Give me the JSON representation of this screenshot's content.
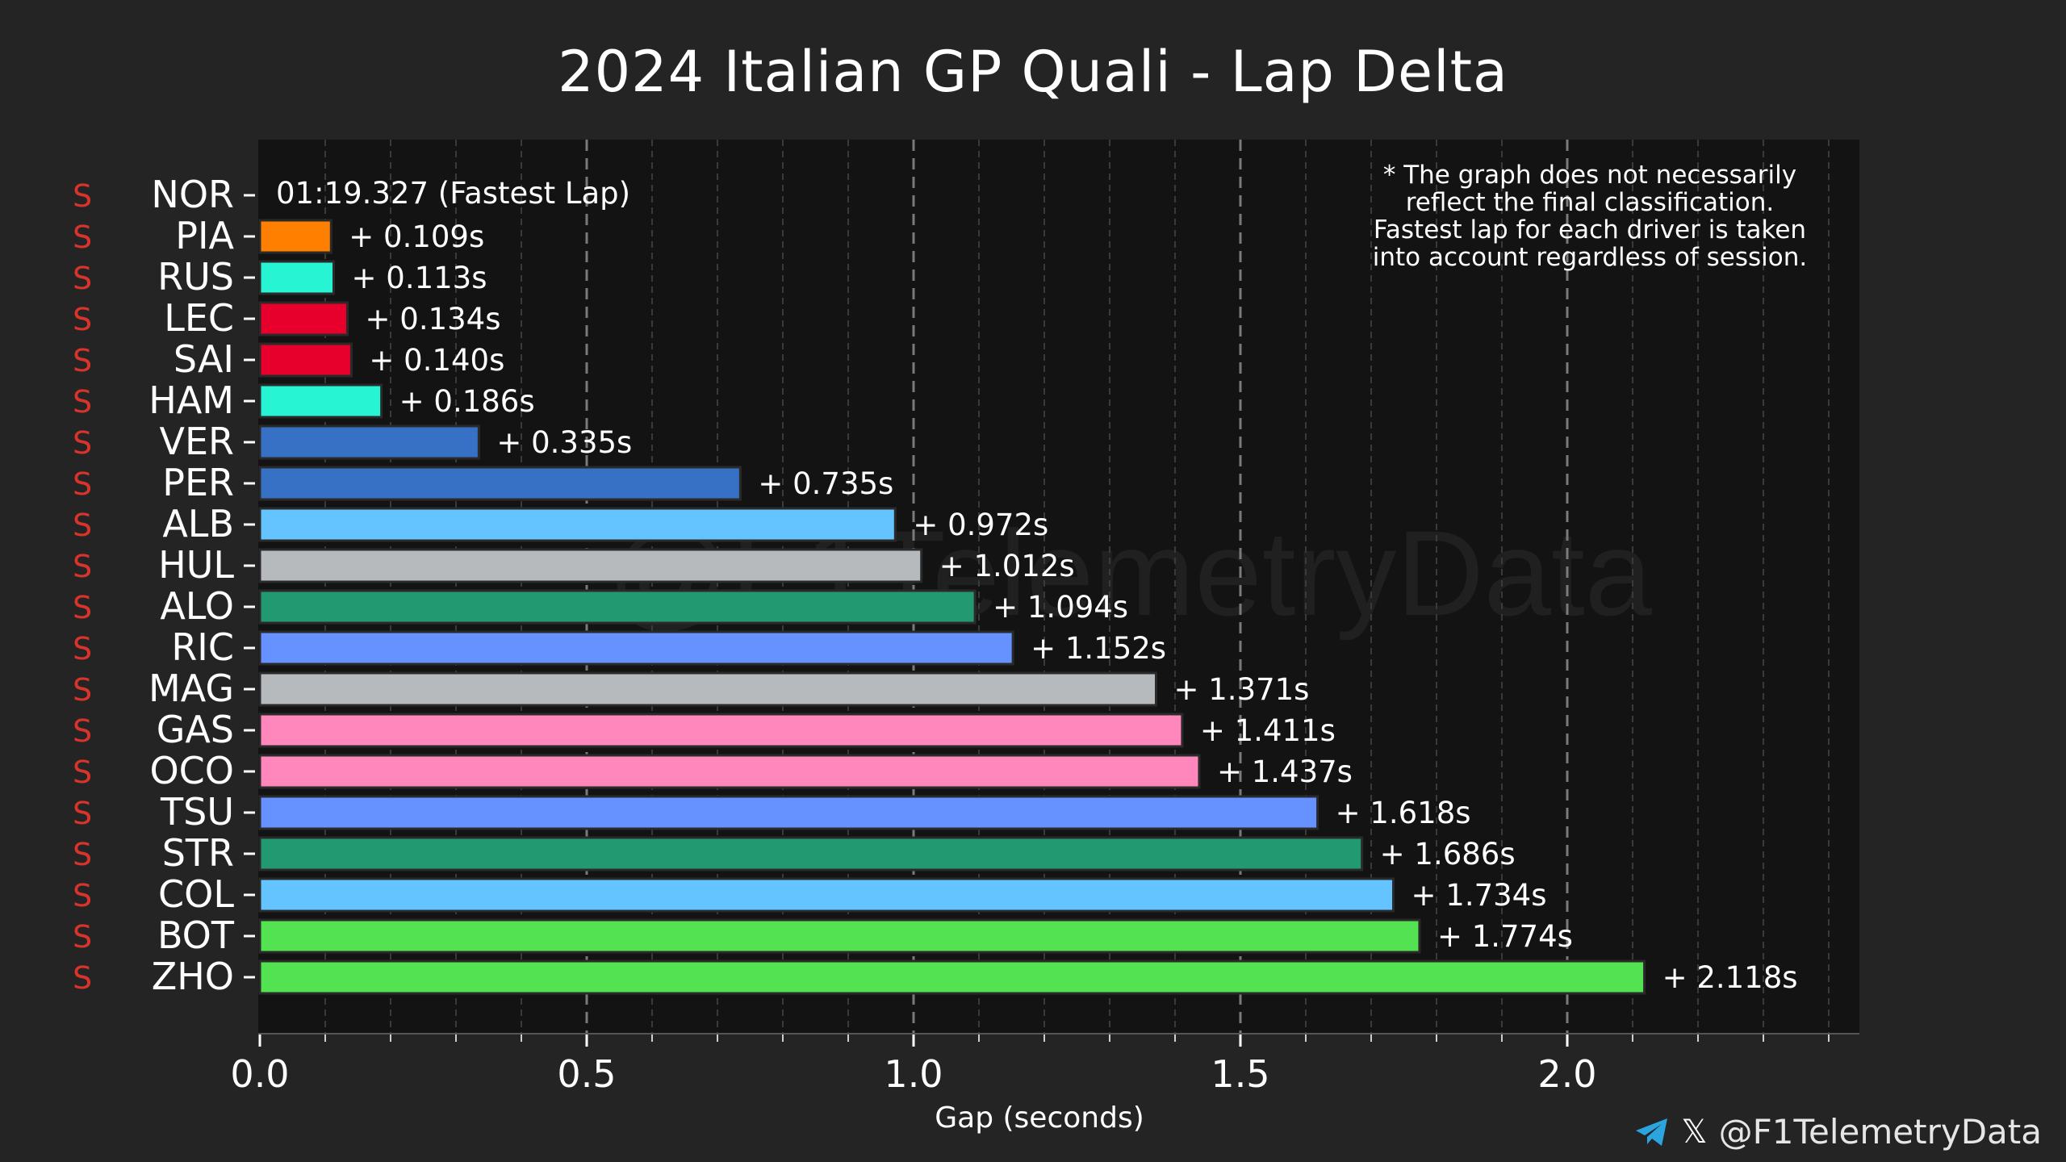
{
  "chart_data": {
    "type": "bar",
    "orientation": "horizontal",
    "title": "2024 Italian GP Quali - Lap Delta",
    "xlabel": "Gap (seconds)",
    "ylabel": "",
    "xlim": [
      0,
      2.45
    ],
    "x_ticks": [
      "0.0",
      "0.5",
      "1.0",
      "1.5",
      "2.0"
    ],
    "x_tick_values": [
      0.0,
      0.5,
      1.0,
      1.5,
      2.0
    ],
    "minor_tick_step": 0.1,
    "grid": true,
    "tyre_compound": "S",
    "fastest_lap": {
      "driver": "NOR",
      "text": "01:19.327 (Fastest Lap)"
    },
    "drivers": [
      {
        "code": "NOR",
        "gap": 0.0,
        "label": "",
        "color": "#ff8000"
      },
      {
        "code": "PIA",
        "gap": 0.109,
        "label": "+ 0.109s",
        "color": "#ff8000"
      },
      {
        "code": "RUS",
        "gap": 0.113,
        "label": "+ 0.113s",
        "color": "#27f4d2"
      },
      {
        "code": "LEC",
        "gap": 0.134,
        "label": "+ 0.134s",
        "color": "#e8002d"
      },
      {
        "code": "SAI",
        "gap": 0.14,
        "label": "+ 0.140s",
        "color": "#e8002d"
      },
      {
        "code": "HAM",
        "gap": 0.186,
        "label": "+ 0.186s",
        "color": "#27f4d2"
      },
      {
        "code": "VER",
        "gap": 0.335,
        "label": "+ 0.335s",
        "color": "#3671c6"
      },
      {
        "code": "PER",
        "gap": 0.735,
        "label": "+ 0.735s",
        "color": "#3671c6"
      },
      {
        "code": "ALB",
        "gap": 0.972,
        "label": "+ 0.972s",
        "color": "#64c4ff"
      },
      {
        "code": "HUL",
        "gap": 1.012,
        "label": "+ 1.012s",
        "color": "#b6babd"
      },
      {
        "code": "ALO",
        "gap": 1.094,
        "label": "+ 1.094s",
        "color": "#229971"
      },
      {
        "code": "RIC",
        "gap": 1.152,
        "label": "+ 1.152s",
        "color": "#6692ff"
      },
      {
        "code": "MAG",
        "gap": 1.371,
        "label": "+ 1.371s",
        "color": "#b6babd"
      },
      {
        "code": "GAS",
        "gap": 1.411,
        "label": "+ 1.411s",
        "color": "#ff87bc"
      },
      {
        "code": "OCO",
        "gap": 1.437,
        "label": "+ 1.437s",
        "color": "#ff87bc"
      },
      {
        "code": "TSU",
        "gap": 1.618,
        "label": "+ 1.618s",
        "color": "#6692ff"
      },
      {
        "code": "STR",
        "gap": 1.686,
        "label": "+ 1.686s",
        "color": "#229971"
      },
      {
        "code": "COL",
        "gap": 1.734,
        "label": "+ 1.734s",
        "color": "#64c4ff"
      },
      {
        "code": "BOT",
        "gap": 1.774,
        "label": "+ 1.774s",
        "color": "#52e252"
      },
      {
        "code": "ZHO",
        "gap": 2.118,
        "label": "+ 2.118s",
        "color": "#52e252"
      }
    ],
    "annotation_lines": [
      "* The graph does not necessarily",
      "reflect the final classification.",
      "Fastest lap for each driver is taken",
      "into account regardless of session."
    ],
    "watermark": "@F1TelemetryData"
  },
  "footer": {
    "handle": "@F1TelemetryData",
    "telegram_icon": "telegram-icon",
    "x_icon": "x-icon",
    "x_glyph": "𝕏"
  },
  "colors": {
    "background": "#242424",
    "plot_background": "#131313",
    "compound_soft": "#d8342c",
    "grid": "#6e6e6e",
    "text": "#ffffff"
  }
}
